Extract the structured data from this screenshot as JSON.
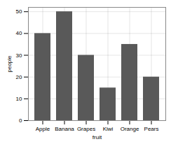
{
  "chart_data": {
    "type": "bar",
    "categories": [
      "Apple",
      "Banana",
      "Grapes",
      "Kiwi",
      "Orange",
      "Pears"
    ],
    "values": [
      40,
      50,
      30,
      15,
      35,
      20
    ],
    "color": "#595959",
    "xlabel": "fruit",
    "ylabel": "people",
    "ylim": [
      0,
      52
    ],
    "yticks": [
      0,
      10,
      20,
      30,
      40,
      50
    ],
    "grid": true
  }
}
